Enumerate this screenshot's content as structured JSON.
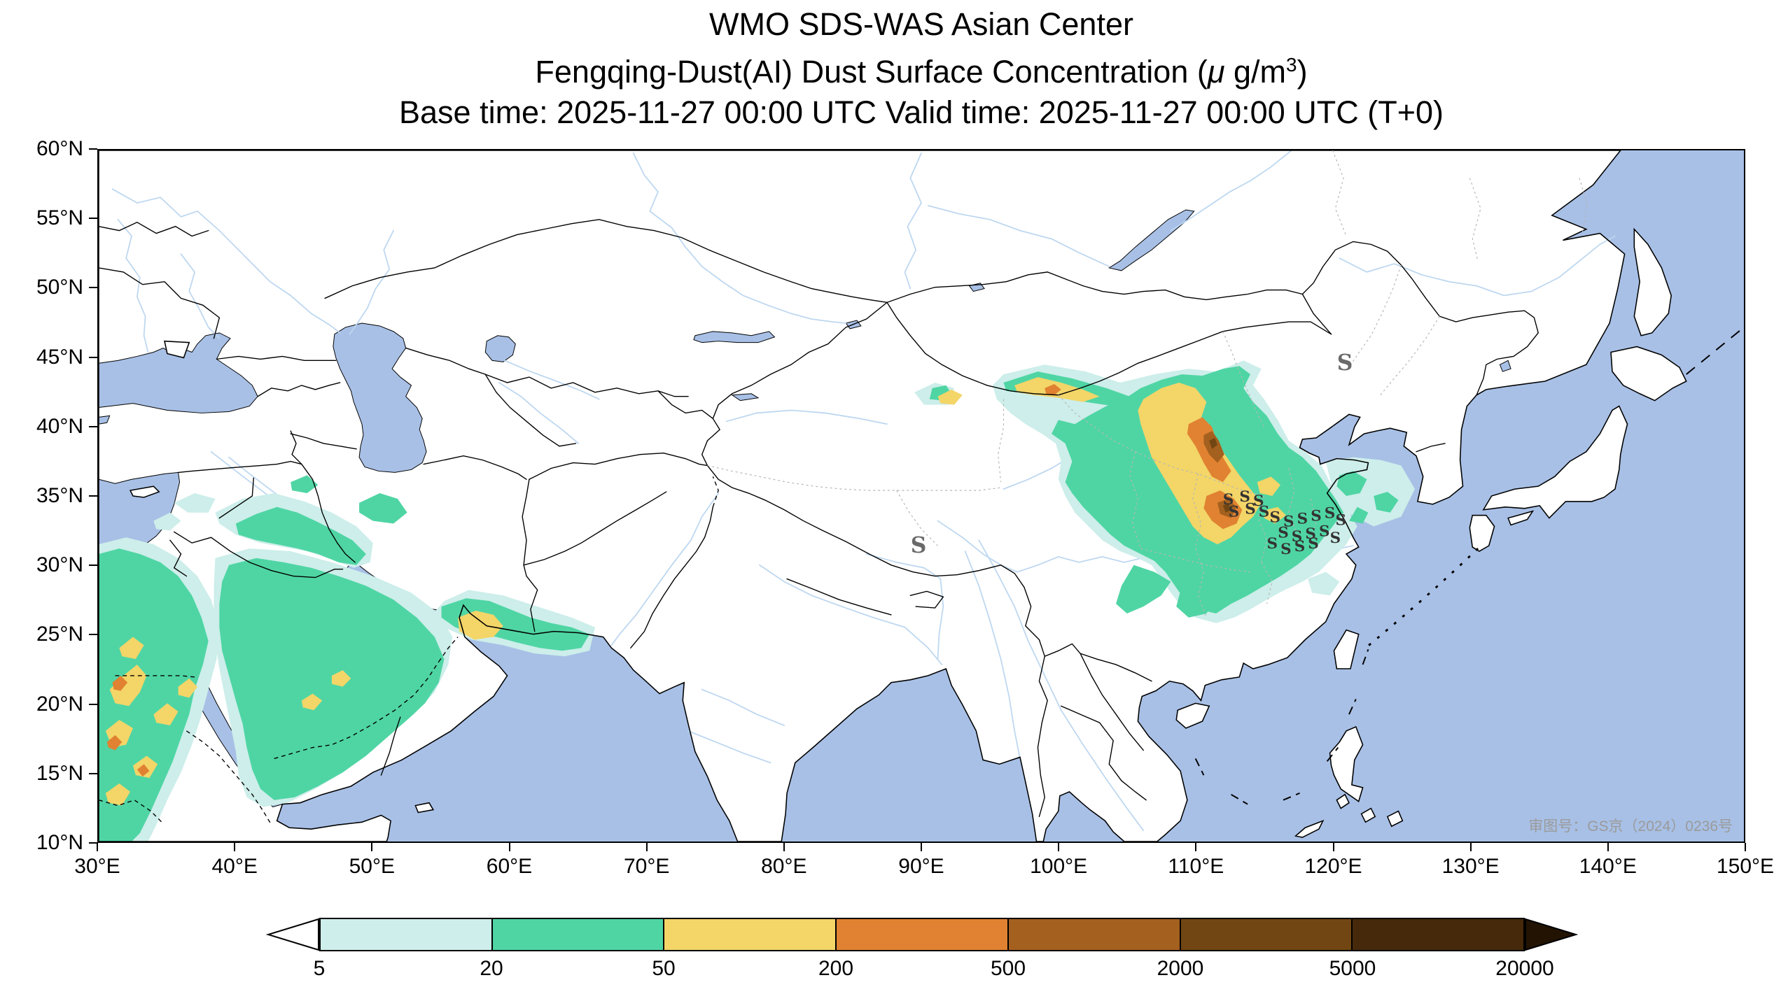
{
  "header": {
    "title": "WMO SDS-WAS Asian Center",
    "subtitle_prefix": "Fengqing-Dust(AI) Dust Surface Concentration (",
    "subtitle_mu": "μ",
    "subtitle_unit": " g/m",
    "subtitle_sup": "3",
    "subtitle_suffix": ")",
    "time_line": "Base time: 2025-11-27 00:00 UTC Valid time: 2025-11-27 00:00 UTC (T+0)"
  },
  "axes": {
    "x_ticks": [
      "30°E",
      "40°E",
      "50°E",
      "60°E",
      "70°E",
      "80°E",
      "90°E",
      "100°E",
      "110°E",
      "120°E",
      "130°E",
      "140°E",
      "150°E"
    ],
    "y_ticks": [
      "60°N",
      "55°N",
      "50°N",
      "45°N",
      "40°N",
      "35°N",
      "30°N",
      "25°N",
      "20°N",
      "15°N",
      "10°N"
    ]
  },
  "colorbar": {
    "labels": [
      "5",
      "20",
      "50",
      "200",
      "500",
      "2000",
      "5000",
      "20000"
    ],
    "segment_colors": [
      "#cdeeea",
      "#4fd5a4",
      "#f3d568",
      "#e08231",
      "#a4601f",
      "#714613",
      "#46290a"
    ],
    "under_arrow_color": "#ffffff",
    "over_arrow_color": "#221303"
  },
  "map": {
    "watermark": "审图号：GS京（2024）0236号",
    "ocean_color": "#a8c0e6",
    "river_color": "#bdd7f0",
    "dust_symbol": "S",
    "symbols": [
      {
        "lon": 112.4,
        "lat": 34.8
      },
      {
        "lon": 113.6,
        "lat": 35.0
      },
      {
        "lon": 114.6,
        "lat": 34.7
      },
      {
        "lon": 112.8,
        "lat": 33.9
      },
      {
        "lon": 114.0,
        "lat": 34.1
      },
      {
        "lon": 115.0,
        "lat": 33.9
      },
      {
        "lon": 115.8,
        "lat": 33.5
      },
      {
        "lon": 116.8,
        "lat": 33.2
      },
      {
        "lon": 117.8,
        "lat": 33.4
      },
      {
        "lon": 118.8,
        "lat": 33.6
      },
      {
        "lon": 119.8,
        "lat": 33.8
      },
      {
        "lon": 120.6,
        "lat": 33.3
      },
      {
        "lon": 116.4,
        "lat": 32.4
      },
      {
        "lon": 117.4,
        "lat": 32.1
      },
      {
        "lon": 118.4,
        "lat": 32.3
      },
      {
        "lon": 119.4,
        "lat": 32.5
      },
      {
        "lon": 120.2,
        "lat": 32.0
      },
      {
        "lon": 115.6,
        "lat": 31.6
      },
      {
        "lon": 116.6,
        "lat": 31.2
      },
      {
        "lon": 117.6,
        "lat": 31.4
      },
      {
        "lon": 118.6,
        "lat": 31.6
      }
    ],
    "large_symbols": [
      {
        "lon": 89.8,
        "lat": 31.3
      },
      {
        "lon": 120.9,
        "lat": 44.5
      }
    ]
  }
}
